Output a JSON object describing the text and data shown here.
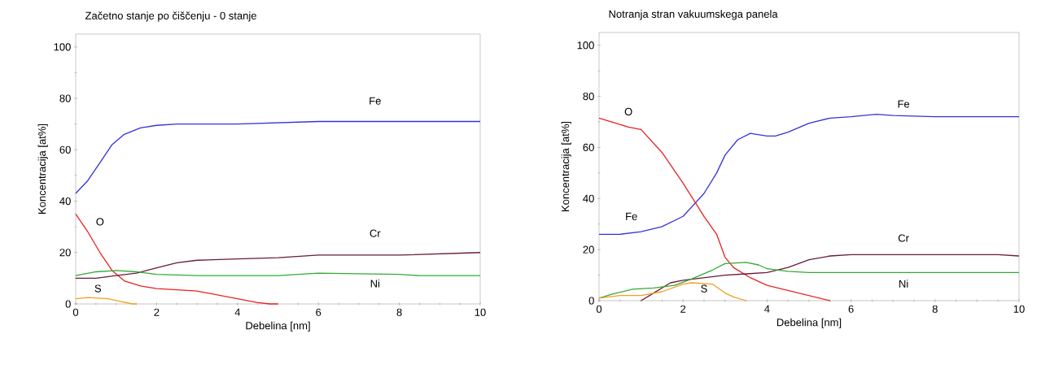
{
  "chart_data": [
    {
      "type": "line",
      "title": "Začetno stanje po čiščenju - 0 stanje",
      "xlabel": "Debelina [nm]",
      "ylabel": "Koncentracija [at%]",
      "xlim": [
        0,
        10
      ],
      "ylim": [
        0,
        105
      ],
      "xticks": [
        0,
        2,
        4,
        6,
        8,
        10
      ],
      "yticks": [
        0,
        20,
        40,
        60,
        80,
        100
      ],
      "grid": false,
      "legend": false,
      "marker": "none",
      "line_style": "solid",
      "series": [
        {
          "name": "Fe",
          "color": "#3333dd",
          "x": [
            0,
            0.3,
            0.6,
            0.9,
            1.2,
            1.6,
            2,
            2.5,
            3,
            4,
            5,
            6,
            8,
            10
          ],
          "values": [
            43,
            48,
            55,
            62,
            66,
            68.5,
            69.5,
            70,
            70,
            70,
            70.5,
            71,
            71,
            71
          ]
        },
        {
          "name": "O",
          "color": "#e82222",
          "x": [
            0,
            0.3,
            0.6,
            0.9,
            1.2,
            1.6,
            2,
            3,
            4,
            4.5,
            4.8,
            5
          ],
          "values": [
            35,
            28,
            20,
            13,
            9,
            7,
            6,
            5,
            2,
            0.5,
            0,
            0
          ]
        },
        {
          "name": "Cr",
          "color": "#6a1a3a",
          "x": [
            0,
            0.5,
            1,
            1.5,
            2,
            2.5,
            3,
            4,
            5,
            6,
            8,
            10
          ],
          "values": [
            10,
            10,
            11,
            12,
            14,
            16,
            17,
            17.5,
            18,
            19,
            19,
            20
          ]
        },
        {
          "name": "Ni",
          "color": "#33aa33",
          "x": [
            0,
            0.5,
            1,
            1.5,
            2,
            3,
            5,
            6,
            8,
            8.5,
            10
          ],
          "values": [
            11,
            12.5,
            13,
            12.5,
            11.5,
            11,
            11,
            12,
            11.5,
            11,
            11
          ]
        },
        {
          "name": "S",
          "color": "#f0a020",
          "x": [
            0,
            0.3,
            0.8,
            1.1,
            1.4,
            1.5
          ],
          "values": [
            2,
            2.5,
            2,
            1,
            0,
            0
          ]
        }
      ]
    },
    {
      "type": "line",
      "title": "Notranja stran vakuumskega panela",
      "xlabel": "Debelina [nm]",
      "ylabel": "Koncentracija [at%]",
      "xlim": [
        0,
        10
      ],
      "ylim": [
        0,
        105
      ],
      "xticks": [
        0,
        2,
        4,
        6,
        8,
        10
      ],
      "yticks": [
        0,
        20,
        40,
        60,
        80,
        100
      ],
      "grid": false,
      "legend": false,
      "marker": "none",
      "line_style": "solid",
      "annotations": [
        "Fe"
      ],
      "series": [
        {
          "name": "Fe",
          "color": "#3333dd",
          "x": [
            0,
            0.5,
            1,
            1.5,
            2,
            2.5,
            2.8,
            3,
            3.3,
            3.6,
            3.8,
            4,
            4.2,
            4.5,
            5,
            5.5,
            6,
            6.6,
            7,
            8,
            9,
            10
          ],
          "values": [
            26,
            26,
            27,
            29,
            33,
            42,
            50,
            57,
            63,
            65.5,
            65,
            64.5,
            64.5,
            66,
            69.5,
            71.5,
            72,
            73,
            72.5,
            72,
            72,
            72
          ]
        },
        {
          "name": "O",
          "color": "#e82222",
          "x": [
            0,
            0.4,
            0.7,
            1,
            1.5,
            2,
            2.5,
            2.8,
            3,
            3.2,
            3.6,
            4,
            4.5,
            5,
            5.5
          ],
          "values": [
            71.5,
            69.5,
            68,
            67,
            58,
            46,
            33,
            26,
            17,
            13,
            9,
            6,
            4,
            2,
            0
          ]
        },
        {
          "name": "Cr",
          "color": "#6a1a3a",
          "x": [
            1,
            1.3,
            1.7,
            2,
            2.5,
            3,
            3.5,
            4,
            4.5,
            5,
            5.5,
            6,
            8,
            9.5,
            10
          ],
          "values": [
            0,
            3,
            7,
            8,
            9,
            10,
            10.5,
            11,
            13,
            16,
            17.5,
            18,
            18,
            18,
            17.5
          ]
        },
        {
          "name": "Ni",
          "color": "#33aa33",
          "x": [
            0,
            0.3,
            0.8,
            1.3,
            1.8,
            2.2,
            2.7,
            3,
            3.5,
            3.8,
            4,
            4.5,
            5,
            10
          ],
          "values": [
            1,
            2.5,
            4.5,
            5,
            6,
            8.5,
            12,
            14.5,
            15,
            14,
            12.5,
            11.5,
            11,
            11
          ]
        },
        {
          "name": "S",
          "color": "#f0a020",
          "x": [
            0,
            0.5,
            1,
            1.5,
            2,
            2.2,
            2.7,
            3,
            3.2,
            3.5
          ],
          "values": [
            1,
            2,
            2,
            3.5,
            6.5,
            7,
            6.5,
            3,
            1.5,
            0
          ]
        }
      ]
    }
  ]
}
